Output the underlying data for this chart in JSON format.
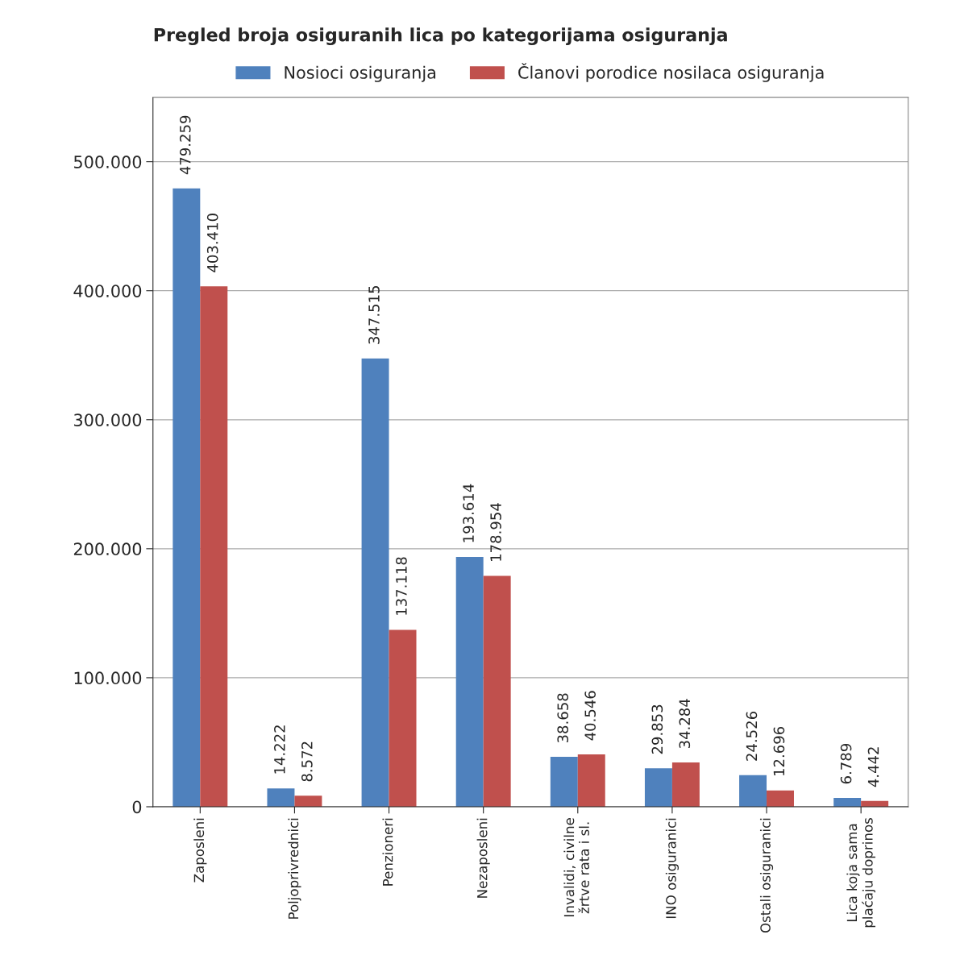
{
  "chart_data": {
    "type": "bar",
    "title": "Pregled broja osiguranih lica po kategorijama osiguranja",
    "categories": [
      "Zaposleni",
      "Poljoprivrednici",
      "Penzioneri",
      "Nezaposleni",
      "Invalidi, civilne\nžrtve rata i sl.",
      "INO osiguranici",
      "Ostali osiguranici",
      "Lica koja sama\nplaćaju doprinos"
    ],
    "series": [
      {
        "name": "Nosioci osiguranja",
        "color": "#4f81bd",
        "values": [
          479259,
          14222,
          347515,
          193614,
          38658,
          29853,
          24526,
          6789
        ],
        "value_labels": [
          "479.259",
          "14.222",
          "347.515",
          "193.614",
          "38.658",
          "29.853",
          "24.526",
          "6.789"
        ]
      },
      {
        "name": "Članovi porodice nosilaca osiguranja",
        "color": "#c0504d",
        "values": [
          403410,
          8572,
          137118,
          178954,
          40546,
          34284,
          12696,
          4442
        ],
        "value_labels": [
          "403.410",
          "8.572",
          "137.118",
          "178.954",
          "40.546",
          "34.284",
          "12.696",
          "4.442"
        ]
      }
    ],
    "ylim": [
      0,
      550000
    ],
    "yticks": [
      {
        "value": 0,
        "label": "0"
      },
      {
        "value": 100000,
        "label": "100.000"
      },
      {
        "value": 200000,
        "label": "200.000"
      },
      {
        "value": 300000,
        "label": "300.000"
      },
      {
        "value": 400000,
        "label": "400.000"
      },
      {
        "value": 500000,
        "label": "500.000"
      }
    ],
    "grid": "y",
    "legend": "top"
  }
}
